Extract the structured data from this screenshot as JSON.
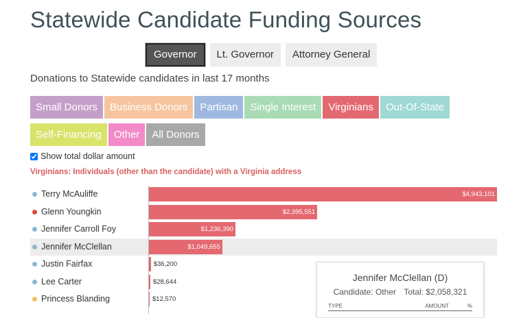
{
  "title": "Statewide Candidate Funding Sources",
  "office_tabs": [
    {
      "label": "Governor",
      "active": true
    },
    {
      "label": "Lt. Governor",
      "active": false
    },
    {
      "label": "Attorney General",
      "active": false
    }
  ],
  "subtitle": "Donations to Statewide candidates in last 17 months",
  "categories": [
    {
      "label": "Small Donors",
      "color": "#c49fc9"
    },
    {
      "label": "Business Donors",
      "color": "#f6c59f"
    },
    {
      "label": "Partisan",
      "color": "#9fb8e0"
    },
    {
      "label": "Single Interest",
      "color": "#a9dbb4"
    },
    {
      "label": "Virginians",
      "color": "#e46870",
      "selected": true
    },
    {
      "label": "Out-Of-State",
      "color": "#9fd8d4"
    },
    {
      "label": "Self-Financing",
      "color": "#d8e36a"
    },
    {
      "label": "Other",
      "color": "#f28ac8"
    },
    {
      "label": "All Donors",
      "color": "#a8a8a8"
    }
  ],
  "show_total_label": "Show total dollar amount",
  "show_total_checked": true,
  "description": "Virginians: Individuals (other than the candidate) with a Virginia address",
  "chart_data": {
    "type": "bar",
    "orientation": "horizontal",
    "series": [
      {
        "name": "Virginians",
        "color": "#e46870"
      }
    ],
    "max_value": 4943101,
    "rows": [
      {
        "name": "Terry McAuliffe",
        "value": 4943101,
        "label": "$4,943,101",
        "dot": "#8fb6d3"
      },
      {
        "name": "Glenn Youngkin",
        "value": 2395551,
        "label": "$2,395,551",
        "dot": "#e04a3c"
      },
      {
        "name": "Jennifer Carroll Foy",
        "value": 1236390,
        "label": "$1,236,390",
        "dot": "#8fb6d3"
      },
      {
        "name": "Jennifer McClellan",
        "value": 1049655,
        "label": "$1,049,655",
        "dot": "#8fb6d3",
        "highlight": true
      },
      {
        "name": "Justin Fairfax",
        "value": 36200,
        "label": "$36,200",
        "dot": "#8fb6d3"
      },
      {
        "name": "Lee Carter",
        "value": 28644,
        "label": "$28,644",
        "dot": "#8fb6d3"
      },
      {
        "name": "Princess Blanding",
        "value": 12570,
        "label": "$12,570",
        "dot": "#f0c060"
      }
    ]
  },
  "tooltip": {
    "title": "Jennifer McClellan (D)",
    "candidate": "Candidate: Other",
    "total": "Total: $2,058,321",
    "col_type": "TYPE",
    "col_amount": "AMOUNT",
    "col_pct": "%"
  }
}
